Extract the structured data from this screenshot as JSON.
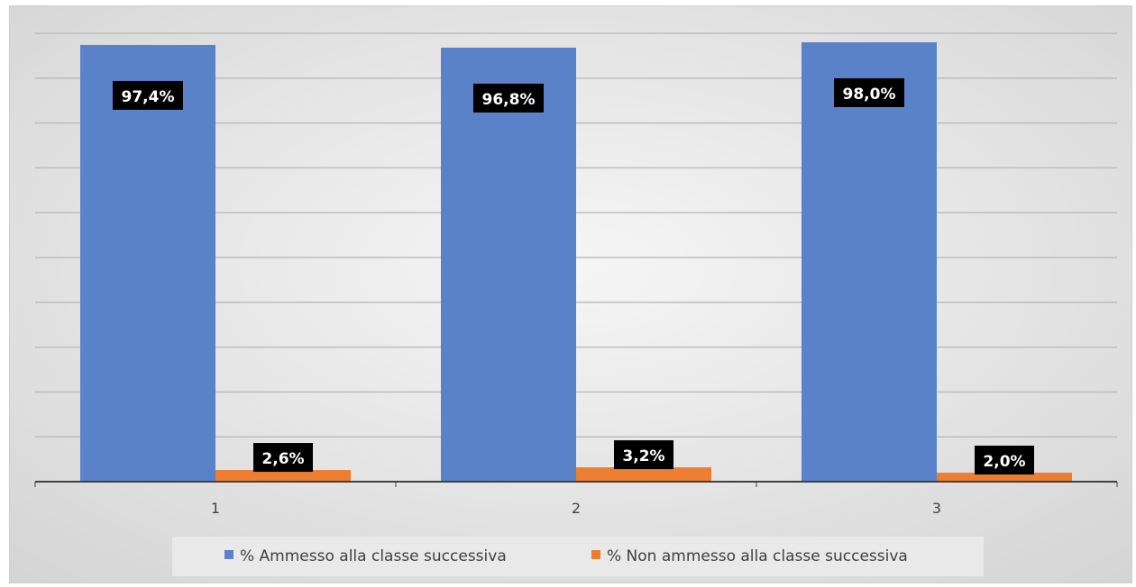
{
  "chart_data": {
    "type": "bar",
    "title": "",
    "xlabel": "",
    "ylabel": "",
    "categories": [
      "1",
      "2",
      "3"
    ],
    "ylim": [
      0,
      100
    ],
    "grid": true,
    "legend_position": "bottom",
    "series": [
      {
        "name": "% Ammesso alla classe successiva",
        "color": "#5a82c8",
        "values": [
          97.4,
          96.8,
          98.0
        ],
        "labels": [
          "97,4%",
          "96,8%",
          "98,0%"
        ]
      },
      {
        "name": "% Non ammesso alla classe successiva",
        "color": "#ed7d31",
        "values": [
          2.6,
          3.2,
          2.0
        ],
        "labels": [
          "2,6%",
          "3,2%",
          "2,0%"
        ]
      }
    ]
  }
}
